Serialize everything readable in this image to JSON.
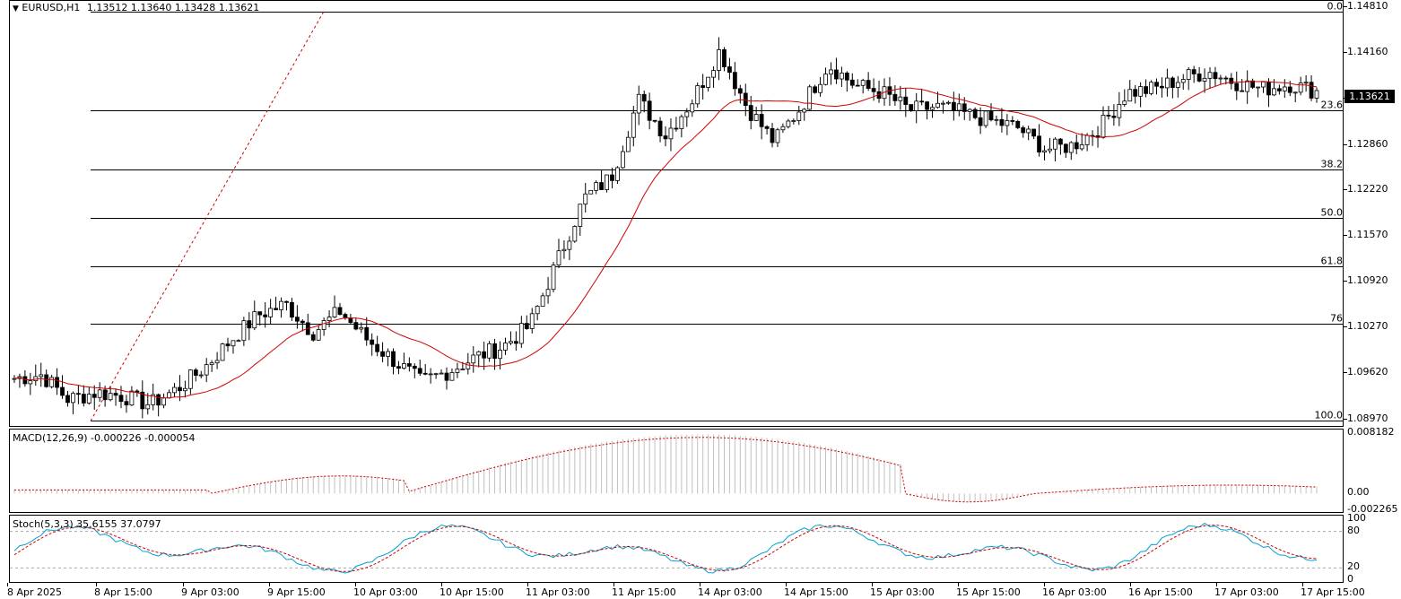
{
  "header": {
    "symbol": "EURUSD,H1",
    "ohlc": "1.13512 1.13640 1.13428 1.13621"
  },
  "fibo_levels": [
    {
      "label": "0.0",
      "price": 1.1475
    },
    {
      "label": "23.6",
      "price": 1.13355
    },
    {
      "label": "38.2",
      "price": 1.1251
    },
    {
      "label": "50.0",
      "price": 1.1183
    },
    {
      "label": "61.8",
      "price": 1.11144
    },
    {
      "label": "76",
      "price": 1.10326
    },
    {
      "label": "100.0",
      "price": 1.08946
    }
  ],
  "price_axis": [
    "1.14810",
    "1.14160",
    "1.13510",
    "1.12860",
    "1.12220",
    "1.11570",
    "1.10920",
    "1.10270",
    "1.09620",
    "1.08970"
  ],
  "current_price": "1.13621",
  "macd": {
    "title": "MACD(12,26,9) -0.000226 -0.000054",
    "axis": [
      "0.008182",
      "0.00",
      "-0.002265"
    ]
  },
  "stoch": {
    "title": "Stoch(5,3,3) 35.6155 37.0797",
    "axis": [
      "100",
      "80",
      "20",
      "0"
    ]
  },
  "time_axis": [
    "8 Apr 2025",
    "8 Apr 15:00",
    "9 Apr 03:00",
    "9 Apr 15:00",
    "10 Apr 03:00",
    "10 Apr 15:00",
    "11 Apr 03:00",
    "11 Apr 15:00",
    "14 Apr 03:00",
    "14 Apr 15:00",
    "15 Apr 03:00",
    "15 Apr 15:00",
    "16 Apr 03:00",
    "16 Apr 15:00",
    "17 Apr 03:00",
    "17 Apr 15:00"
  ],
  "colors": {
    "ma": "#d00000",
    "signal": "#d00000",
    "stoch_main": "#00a0d0",
    "histogram": "#c0c0c0",
    "grid": "#000000"
  },
  "chart_data": [
    {
      "type": "candlestick",
      "symbol": "EURUSD",
      "timeframe": "H1",
      "ylim": [
        1.0885,
        1.149
      ],
      "ma_period_visible": true,
      "close_path": [
        1.0955,
        1.096,
        1.0925,
        1.0935,
        1.093,
        1.0918,
        1.094,
        1.097,
        1.101,
        1.1045,
        1.106,
        1.102,
        1.105,
        1.101,
        1.098,
        1.095,
        1.0965,
        1.0985,
        1.1,
        1.103,
        1.112,
        1.121,
        1.124,
        1.135,
        1.13,
        1.135,
        1.142,
        1.134,
        1.129,
        1.134,
        1.14,
        1.137,
        1.136,
        1.1335,
        1.134,
        1.133,
        1.132,
        1.131,
        1.128,
        1.1285,
        1.131,
        1.136,
        1.1365,
        1.138,
        1.139,
        1.1375,
        1.1365,
        1.1372,
        1.1362
      ]
    },
    {
      "type": "line",
      "name": "MACD(12,26,9)",
      "ylim": [
        -0.002265,
        0.008182
      ]
    },
    {
      "type": "line",
      "name": "Stoch(5,3,3)",
      "ylim": [
        0,
        100
      ],
      "levels": [
        20,
        80
      ]
    }
  ]
}
